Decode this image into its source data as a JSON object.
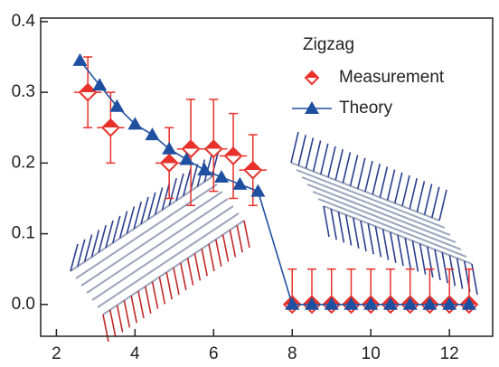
{
  "chart_data": {
    "type": "errorbar-line",
    "xlim": [
      1.6,
      13.1
    ],
    "ylim": [
      -0.045,
      0.405
    ],
    "xticks": [
      2,
      4,
      6,
      8,
      10,
      12
    ],
    "yticks": [
      {
        "value": 0,
        "label": "0.0"
      },
      0.1,
      0.2,
      0.3,
      0.4
    ],
    "legend": "upper right",
    "legend_title": "Zigzag",
    "legend_title_color": "#c8642a",
    "series": [
      {
        "name": "Measurement",
        "color": "#e8312a",
        "marker": "diamond",
        "x": [
          2.8,
          3.38,
          4.87,
          5.42,
          6.0,
          6.5,
          7.0,
          8.0,
          8.5,
          9.0,
          9.5,
          10.0,
          10.5,
          11.0,
          11.5,
          12.0,
          12.5
        ],
        "values": [
          0.3,
          0.25,
          0.2,
          0.22,
          0.22,
          0.21,
          0.19,
          0,
          0,
          0,
          0,
          0,
          0,
          0,
          0,
          0,
          0
        ],
        "yerr_minus": [
          0.05,
          0.05,
          0.05,
          0.08,
          0.06,
          0.06,
          0.05,
          0,
          0,
          0,
          0,
          0,
          0,
          0,
          0,
          0,
          0
        ],
        "yerr_plus": [
          0.05,
          0.05,
          0.05,
          0.07,
          0.07,
          0.06,
          0.05,
          0.05,
          0.05,
          0.05,
          0.05,
          0.05,
          0.05,
          0.05,
          0.05,
          0.05,
          0.05
        ],
        "xerr": [
          0.35,
          0.35,
          0.35,
          0.35,
          0.35,
          0.35,
          0.35,
          0,
          0,
          0,
          0,
          0,
          0,
          0,
          0,
          0,
          0
        ]
      },
      {
        "name": "Theory",
        "color": "#1f4fa0",
        "marker": "triangle",
        "x": [
          2.6,
          3.1,
          3.54,
          4.0,
          4.44,
          4.87,
          5.31,
          5.77,
          6.2,
          6.67,
          7.13,
          8.0,
          8.5,
          9.0,
          9.5,
          10.0,
          10.5,
          11.0,
          11.5,
          12.0,
          12.5
        ],
        "values": [
          0.345,
          0.31,
          0.28,
          0.255,
          0.24,
          0.22,
          0.205,
          0.19,
          0.18,
          0.17,
          0.16,
          0,
          0,
          0,
          0,
          0,
          0,
          0,
          0,
          0,
          0
        ]
      }
    ]
  }
}
